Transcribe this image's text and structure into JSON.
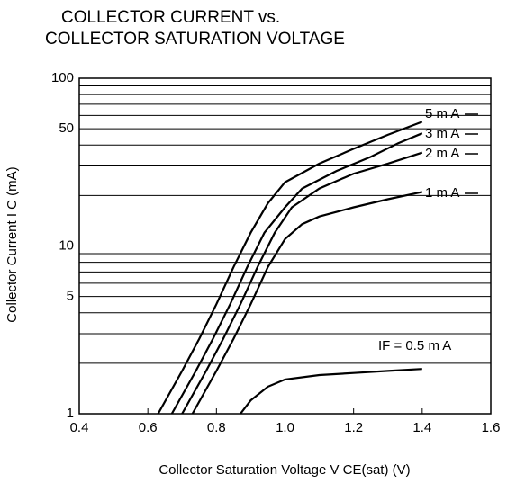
{
  "chart_data": {
    "type": "line",
    "title": [
      "COLLECTOR CURRENT vs.",
      "COLLECTOR SATURATION VOLTAGE"
    ],
    "x_label": "Collector Saturation Voltage V CE(sat) (V)",
    "y_label": "Collector Current I C (mA)",
    "y_scale": "log",
    "grid": true,
    "xlim": [
      0.4,
      1.6
    ],
    "xticks": [
      {
        "value": 0.4,
        "label": "0.4"
      },
      0.6,
      0.8,
      {
        "value": 1,
        "label": "1.0"
      },
      1.2,
      1.4,
      1.6
    ],
    "ylim": [
      1,
      100
    ],
    "yticks": [
      1,
      5,
      10,
      50,
      100
    ],
    "minor_yticks": [
      2,
      3,
      4,
      6,
      7,
      8,
      9,
      20,
      30,
      40,
      60,
      70,
      80,
      90
    ],
    "series": [
      {
        "name": "5 m A",
        "color": "#000000",
        "x": [
          0.63,
          0.7,
          0.75,
          0.8,
          0.85,
          0.9,
          0.95,
          1.0,
          1.1,
          1.2,
          1.3,
          1.4
        ],
        "values": [
          1,
          1.8,
          2.8,
          4.5,
          7.5,
          12,
          18,
          24,
          31,
          38,
          46,
          55
        ]
      },
      {
        "name": "3 m A",
        "color": "#000000",
        "x": [
          0.67,
          0.74,
          0.79,
          0.84,
          0.89,
          0.94,
          1.0,
          1.05,
          1.15,
          1.25,
          1.33,
          1.4
        ],
        "values": [
          1,
          1.8,
          2.8,
          4.5,
          7.5,
          12,
          17,
          22,
          28,
          34,
          41,
          47
        ]
      },
      {
        "name": "2 m A",
        "color": "#000000",
        "x": [
          0.7,
          0.77,
          0.82,
          0.87,
          0.92,
          0.97,
          1.02,
          1.1,
          1.2,
          1.3,
          1.4
        ],
        "values": [
          1,
          1.8,
          2.8,
          4.5,
          7.5,
          12,
          17,
          22,
          27,
          31,
          36
        ]
      },
      {
        "name": "1 m A",
        "color": "#000000",
        "x": [
          0.73,
          0.8,
          0.85,
          0.9,
          0.95,
          1.0,
          1.05,
          1.1,
          1.2,
          1.3,
          1.4
        ],
        "values": [
          1,
          1.8,
          2.8,
          4.5,
          7.5,
          11,
          13.5,
          15,
          17,
          19,
          21
        ]
      },
      {
        "name": "IF = 0.5 m A",
        "color": "#000000",
        "x": [
          0.87,
          0.9,
          0.95,
          1.0,
          1.1,
          1.2,
          1.3,
          1.4
        ],
        "values": [
          1,
          1.2,
          1.45,
          1.6,
          1.7,
          1.75,
          1.8,
          1.85
        ]
      }
    ]
  }
}
